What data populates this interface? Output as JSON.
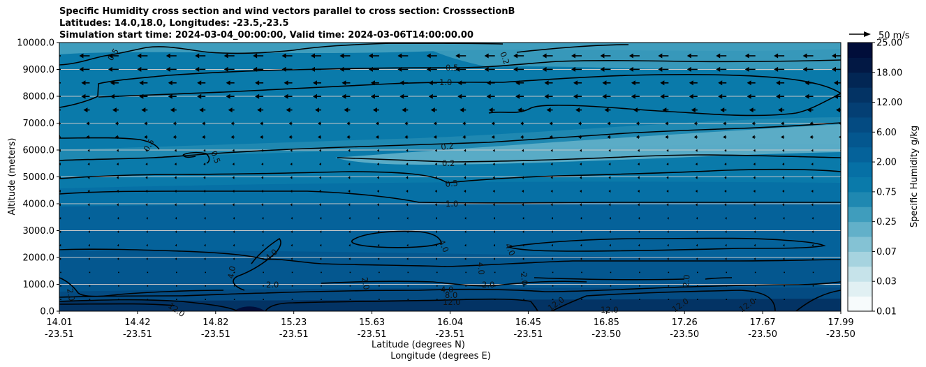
{
  "chart_data": {
    "type": "contour",
    "title_lines": [
      "Specific Humidity cross section and wind vectors parallel to cross section: CrosssectionB",
      "Latitudes: 14.0,18.0, Longitudes: -23.5,-23.5",
      "Simulation start time: 2024-03-04_00:00:00, Valid time: 2024-03-06T14:00:00.00"
    ],
    "ylabel": "Altitude (meters)",
    "xlabel_lat": "Latitude (degrees N)",
    "xlabel_lon": "Longitude (degrees E)",
    "ylim": [
      0,
      10000
    ],
    "y_ticks": [
      "0.0",
      "1000.0",
      "2000.0",
      "3000.0",
      "4000.0",
      "5000.0",
      "6000.0",
      "7000.0",
      "8000.0",
      "9000.0",
      "10000.0"
    ],
    "x_ticks": [
      {
        "lat": "14.01",
        "lon": "-23.51"
      },
      {
        "lat": "14.42",
        "lon": "-23.51"
      },
      {
        "lat": "14.82",
        "lon": "-23.51"
      },
      {
        "lat": "15.23",
        "lon": "-23.51"
      },
      {
        "lat": "15.63",
        "lon": "-23.51"
      },
      {
        "lat": "16.04",
        "lon": "-23.51"
      },
      {
        "lat": "16.45",
        "lon": "-23.51"
      },
      {
        "lat": "16.85",
        "lon": "-23.50"
      },
      {
        "lat": "17.26",
        "lon": "-23.50"
      },
      {
        "lat": "17.67",
        "lon": "-23.50"
      },
      {
        "lat": "17.99",
        "lon": "-23.50"
      }
    ],
    "colorbar": {
      "label": "Specific Humidity g/kg",
      "tick_labels": [
        "0.01",
        "0.03",
        "0.07",
        "0.25",
        "0.75",
        "2.00",
        "6.00",
        "12.00",
        "18.00",
        "25.00"
      ]
    },
    "wind_key": "50 m/s",
    "contour_labels": [
      "0.2",
      "0.5",
      "1.0",
      "2.0",
      "4.0",
      "8.0",
      "12.0"
    ],
    "colors": {
      "colormap": [
        "#f7fbfc",
        "#e1f0f3",
        "#c6e3ea",
        "#a6d3df",
        "#84c2d4",
        "#62b0c9",
        "#3f9dbd",
        "#1f88b1",
        "#0a7aaa",
        "#0670a5",
        "#05629a",
        "#04578f",
        "#044b82",
        "#043f74",
        "#033364",
        "#022654",
        "#021844",
        "#010e3a"
      ],
      "grid": "#c8c8c8",
      "contour": "#000000"
    }
  }
}
